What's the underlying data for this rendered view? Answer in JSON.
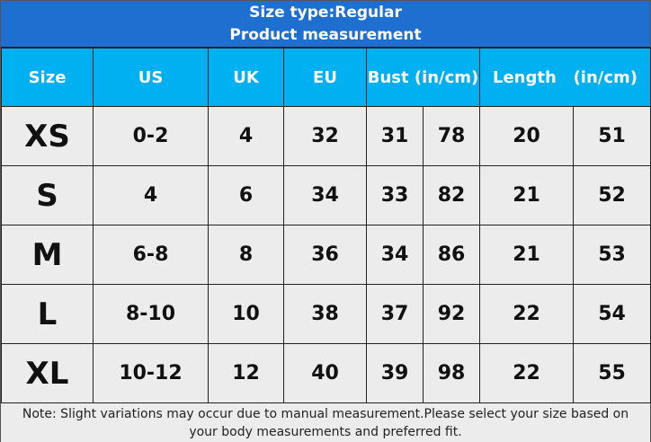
{
  "title": {
    "line1": "Size type:Regular",
    "line2": "Product measurement"
  },
  "header": [
    "Size",
    "US",
    "UK",
    "EU",
    "Bust (in/cm)",
    "Length   (in/cm)"
  ],
  "rows": [
    [
      "XS",
      "0-2",
      "4",
      "32",
      "31",
      "78",
      "20",
      "51"
    ],
    [
      "S",
      "4",
      "6",
      "34",
      "33",
      "82",
      "21",
      "52"
    ],
    [
      "M",
      "6-8",
      "8",
      "36",
      "34",
      "86",
      "21",
      "53"
    ],
    [
      "L",
      "8-10",
      "10",
      "38",
      "37",
      "92",
      "22",
      "54"
    ],
    [
      "XL",
      "10-12",
      "12",
      "40",
      "39",
      "98",
      "22",
      "55"
    ]
  ],
  "note": "Note: Slight variations may occur due to manual measurement.Please select your size based on your body measurements and preferred fit."
}
